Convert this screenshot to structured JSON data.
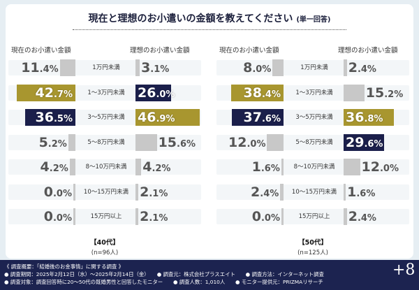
{
  "title": "現在と理想のお小遣いの金額を教えてください",
  "subtitle": "(単一回答)",
  "headers": {
    "current": "現在のお小遣い金額",
    "ideal": "理想のお小遣い金額"
  },
  "chart_data": {
    "type": "bar",
    "title": "現在と理想のお小遣いの金額を教えてください (単一回答)",
    "categories": [
      "1万円未満",
      "1～3万円未満",
      "3～5万円未満",
      "5～8万円未満",
      "8～10万円未満",
      "10～15万円未満",
      "15万円以上"
    ],
    "groups": [
      {
        "name": "【40代】",
        "n": "(n=96人)",
        "series": [
          {
            "name": "現在のお小遣い金額",
            "values": [
              11.4,
              42.7,
              36.5,
              5.2,
              4.2,
              0.0,
              0.0
            ]
          },
          {
            "name": "理想のお小遣い金額",
            "values": [
              3.1,
              26.0,
              46.9,
              15.6,
              4.2,
              2.1,
              2.1
            ]
          }
        ]
      },
      {
        "name": "【50代】",
        "n": "(n=125人)",
        "series": [
          {
            "name": "現在のお小遣い金額",
            "values": [
              8.0,
              38.4,
              37.6,
              12.0,
              1.6,
              2.4,
              0.0
            ]
          },
          {
            "name": "理想のお小遣い金額",
            "values": [
              2.4,
              15.2,
              36.8,
              29.6,
              12.0,
              1.6,
              2.4
            ]
          }
        ]
      }
    ]
  },
  "colors": {
    "navy": "#1b1f4b",
    "gold": "#a8962f",
    "grey": "#c8c8c8",
    "band": "#f3f6f8",
    "footer_bg": "#1c2350"
  },
  "footer": {
    "line1": "《 調査概要：「結婚後のお金事情」に関する調査 》",
    "line2": "● 調査期間：2025年2月12日（水）～2025年2月14日（金）　　● 調査元：株式会社プラスエイト　　● 調査方法：インターネット調査",
    "line3": "● 調査対象：調査回答時に20～50代の既婚男性と回答したモニター　　● 調査人数：1,010人　　● モニター提供元：PRIZMAリサーチ",
    "logo": "+8"
  }
}
